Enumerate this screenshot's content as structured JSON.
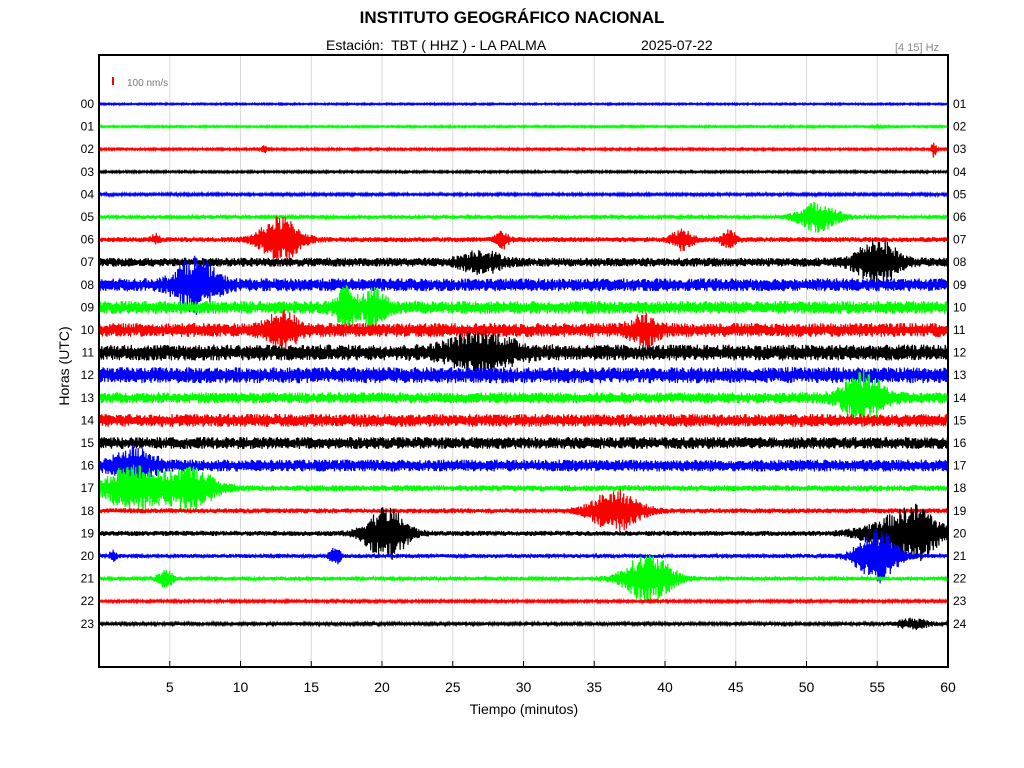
{
  "header": {
    "title": "INSTITUTO GEOGRÁFICO NACIONAL",
    "station_line": "Estación:  TBT ( HHZ ) - LA PALMA",
    "date": "2025-07-22",
    "band": "[4 15] Hz"
  },
  "scale_label": "100 nm/s",
  "colors": {
    "blue": "#0000ff",
    "green": "#00ff00",
    "red": "#ff0000",
    "black": "#000000",
    "scale": "#ff0000"
  },
  "chart_data": {
    "type": "line",
    "title": "INSTITUTO GEOGRÁFICO NACIONAL",
    "xlabel": "Tiempo (minutos)",
    "ylabel": "Horas (UTC)",
    "xlim": [
      0,
      60
    ],
    "x_ticks": [
      "5",
      "10",
      "15",
      "20",
      "25",
      "30",
      "35",
      "40",
      "45",
      "50",
      "55",
      "60"
    ],
    "grid": true,
    "left_labels": [
      "00",
      "01",
      "02",
      "03",
      "04",
      "05",
      "06",
      "07",
      "08",
      "09",
      "10",
      "11",
      "12",
      "13",
      "14",
      "15",
      "16",
      "17",
      "18",
      "19",
      "20",
      "21",
      "22",
      "23"
    ],
    "right_labels": [
      "01",
      "02",
      "03",
      "04",
      "05",
      "06",
      "07",
      "08",
      "09",
      "10",
      "11",
      "12",
      "13",
      "14",
      "15",
      "16",
      "17",
      "18",
      "19",
      "20",
      "21",
      "22",
      "23",
      "24"
    ],
    "traces": [
      {
        "hour": 0,
        "color": "blue",
        "noise": 0.8,
        "events": []
      },
      {
        "hour": 1,
        "color": "green",
        "noise": 0.9,
        "events": [
          {
            "t": 55.0,
            "amp": 2,
            "dur": 0.3
          }
        ]
      },
      {
        "hour": 2,
        "color": "red",
        "noise": 1.0,
        "events": [
          {
            "t": 11.7,
            "amp": 3,
            "dur": 0.3
          },
          {
            "t": 59.0,
            "amp": 8,
            "dur": 0.2
          }
        ]
      },
      {
        "hour": 3,
        "color": "black",
        "noise": 1.0,
        "events": []
      },
      {
        "hour": 4,
        "color": "blue",
        "noise": 1.2,
        "events": []
      },
      {
        "hour": 5,
        "color": "green",
        "noise": 1.8,
        "events": [
          {
            "t": 50.8,
            "amp": 14,
            "dur": 1.5
          }
        ]
      },
      {
        "hour": 6,
        "color": "red",
        "noise": 2.5,
        "events": [
          {
            "t": 12.8,
            "amp": 22,
            "dur": 1.5
          },
          {
            "t": 28.5,
            "amp": 8,
            "dur": 0.5
          },
          {
            "t": 41.2,
            "amp": 10,
            "dur": 0.8
          },
          {
            "t": 44.5,
            "amp": 8,
            "dur": 0.6
          },
          {
            "t": 4.0,
            "amp": 5,
            "dur": 0.3
          }
        ]
      },
      {
        "hour": 7,
        "color": "black",
        "noise": 4.5,
        "events": [
          {
            "t": 27.0,
            "amp": 10,
            "dur": 1.5
          },
          {
            "t": 55.0,
            "amp": 22,
            "dur": 1.5
          }
        ]
      },
      {
        "hour": 8,
        "color": "blue",
        "noise": 6.5,
        "events": [
          {
            "t": 6.8,
            "amp": 24,
            "dur": 1.5
          }
        ]
      },
      {
        "hour": 9,
        "color": "green",
        "noise": 6.5,
        "events": [
          {
            "t": 17.5,
            "amp": 16,
            "dur": 0.8
          },
          {
            "t": 19.5,
            "amp": 16,
            "dur": 0.8
          }
        ]
      },
      {
        "hour": 10,
        "color": "red",
        "noise": 7.0,
        "events": [
          {
            "t": 13.0,
            "amp": 14,
            "dur": 1.2
          },
          {
            "t": 38.5,
            "amp": 12,
            "dur": 1.0
          }
        ]
      },
      {
        "hour": 11,
        "color": "black",
        "noise": 8.0,
        "events": [
          {
            "t": 27.0,
            "amp": 16,
            "dur": 2.5
          }
        ]
      },
      {
        "hour": 12,
        "color": "blue",
        "noise": 8.0,
        "events": []
      },
      {
        "hour": 13,
        "color": "green",
        "noise": 5.5,
        "events": [
          {
            "t": 54.0,
            "amp": 22,
            "dur": 1.5
          }
        ]
      },
      {
        "hour": 14,
        "color": "red",
        "noise": 6.5,
        "events": []
      },
      {
        "hour": 15,
        "color": "black",
        "noise": 6.0,
        "events": []
      },
      {
        "hour": 16,
        "color": "blue",
        "noise": 6.0,
        "events": [
          {
            "t": 2.5,
            "amp": 14,
            "dur": 1.5
          }
        ]
      },
      {
        "hour": 17,
        "color": "green",
        "noise": 3.0,
        "events": [
          {
            "t": 2.5,
            "amp": 24,
            "dur": 2.0
          },
          {
            "t": 6.5,
            "amp": 20,
            "dur": 1.8
          }
        ]
      },
      {
        "hour": 18,
        "color": "red",
        "noise": 2.5,
        "events": [
          {
            "t": 36.5,
            "amp": 20,
            "dur": 1.8
          }
        ]
      },
      {
        "hour": 19,
        "color": "black",
        "noise": 2.5,
        "events": [
          {
            "t": 20.3,
            "amp": 26,
            "dur": 1.5
          },
          {
            "t": 56.5,
            "amp": 16,
            "dur": 2.5
          },
          {
            "t": 58.0,
            "amp": 16,
            "dur": 1.5
          }
        ]
      },
      {
        "hour": 20,
        "color": "blue",
        "noise": 2.0,
        "events": [
          {
            "t": 16.7,
            "amp": 8,
            "dur": 0.4
          },
          {
            "t": 55.0,
            "amp": 26,
            "dur": 1.5
          },
          {
            "t": 1.0,
            "amp": 5,
            "dur": 0.3
          }
        ]
      },
      {
        "hour": 21,
        "color": "green",
        "noise": 1.8,
        "events": [
          {
            "t": 4.7,
            "amp": 8,
            "dur": 0.6
          },
          {
            "t": 38.8,
            "amp": 24,
            "dur": 1.8
          }
        ]
      },
      {
        "hour": 22,
        "color": "red",
        "noise": 1.2,
        "events": []
      },
      {
        "hour": 23,
        "color": "black",
        "noise": 1.5,
        "events": [
          {
            "t": 57.5,
            "amp": 5,
            "dur": 1.2
          }
        ]
      }
    ]
  }
}
